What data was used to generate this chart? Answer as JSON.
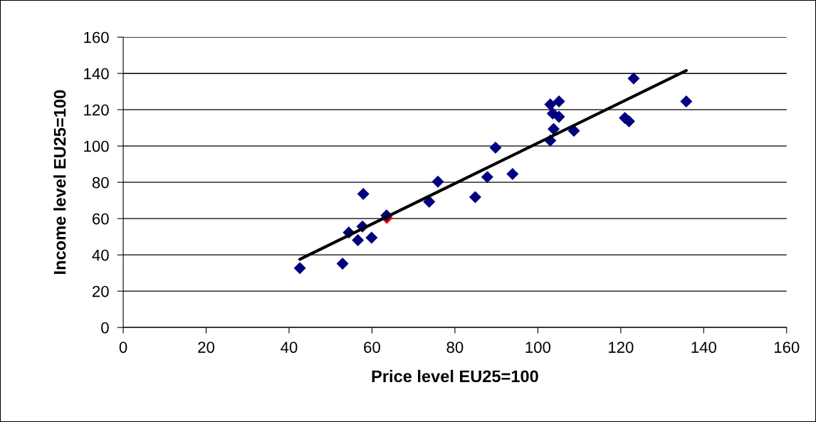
{
  "chart_data": {
    "type": "scatter",
    "xlabel": "Price level EU25=100",
    "ylabel": "Income level EU25=100",
    "xlim": [
      0,
      160
    ],
    "xticks": [
      0,
      20,
      40,
      60,
      80,
      100,
      120,
      140,
      160
    ],
    "ylim": [
      0,
      160
    ],
    "yticks": [
      0,
      20,
      40,
      60,
      80,
      100,
      120,
      140,
      160
    ],
    "grid": "y",
    "marker": "diamond",
    "series": [
      {
        "color": "#ff0000",
        "x": [
          63.6
        ],
        "values": [
          60.4
        ]
      },
      {
        "color": "#000080",
        "x": [
          42.6,
          52.9,
          54.4,
          56.6,
          57.9,
          57.7,
          59.9,
          63.5,
          73.8,
          75.9,
          84.9,
          87.8,
          89.8,
          93.9,
          103.0,
          105.1,
          103.6,
          105.1,
          103.8,
          103.0,
          108.7,
          121.0,
          122.0,
          123.1,
          135.8
        ],
        "values": [
          32.7,
          35.2,
          52.3,
          48.1,
          73.6,
          55.7,
          49.5,
          61.7,
          69.3,
          80.4,
          71.8,
          82.9,
          99.1,
          84.6,
          122.9,
          124.6,
          117.9,
          116.1,
          109.4,
          103.0,
          108.4,
          115.5,
          113.6,
          137.2,
          124.6
        ]
      },
      {
        "type": "line",
        "color": "#000000",
        "marker": "none",
        "x": [
          42.6,
          135.8
        ],
        "values": [
          37.6,
          141.6
        ]
      }
    ]
  }
}
